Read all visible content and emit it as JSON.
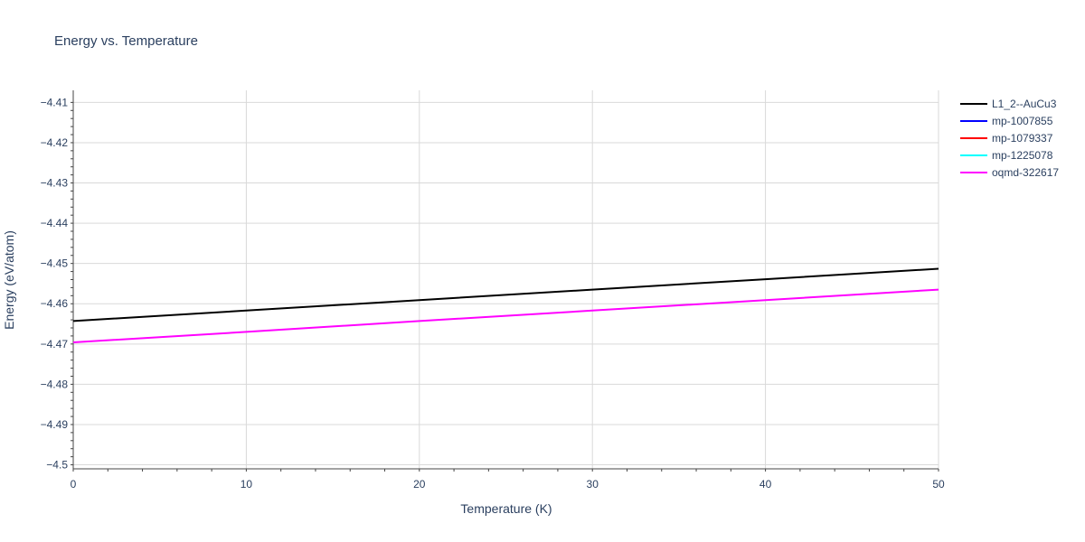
{
  "chart_data": {
    "type": "line",
    "title": "Energy vs. Temperature",
    "xlabel": "Temperature (K)",
    "ylabel": "Energy (eV/atom)",
    "xlim": [
      0,
      50
    ],
    "ylim": [
      -4.501,
      -4.407
    ],
    "xticks": [
      0,
      10,
      20,
      30,
      40,
      50
    ],
    "yticks": [
      -4.41,
      -4.42,
      -4.43,
      -4.44,
      -4.45,
      -4.46,
      -4.47,
      -4.48,
      -4.49,
      -4.5
    ],
    "xtick_labels": [
      "0",
      "10",
      "20",
      "30",
      "40",
      "50"
    ],
    "ytick_labels": [
      "−4.41",
      "−4.42",
      "−4.43",
      "−4.44",
      "−4.45",
      "−4.46",
      "−4.47",
      "−4.48",
      "−4.49",
      "−4.5"
    ],
    "grid": true,
    "legend_position": "top-right outside",
    "series": [
      {
        "name": "L1_2--AuCu3",
        "color": "#000000",
        "x": [
          0,
          10,
          20,
          30,
          40,
          50
        ],
        "y": [
          -4.4643,
          -4.4617,
          -4.4591,
          -4.4565,
          -4.4539,
          -4.4513
        ]
      },
      {
        "name": "mp-1007855",
        "color": "#0000ff",
        "x": [],
        "y": []
      },
      {
        "name": "mp-1079337",
        "color": "#ff0000",
        "x": [],
        "y": []
      },
      {
        "name": "mp-1225078",
        "color": "#00ffff",
        "x": [],
        "y": []
      },
      {
        "name": "oqmd-322617",
        "color": "#ff00ff",
        "x": [
          0,
          10,
          20,
          30,
          40,
          50
        ],
        "y": [
          -4.4696,
          -4.467,
          -4.4643,
          -4.4617,
          -4.4591,
          -4.4565
        ]
      }
    ]
  }
}
